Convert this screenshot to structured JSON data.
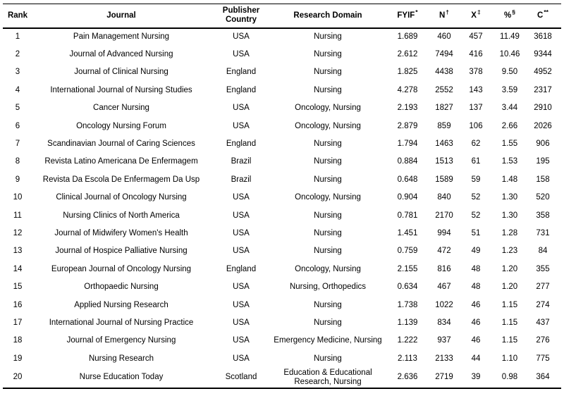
{
  "table": {
    "columns": [
      {
        "key": "rank",
        "label": "Rank",
        "mark": ""
      },
      {
        "key": "journal",
        "label": "Journal",
        "mark": ""
      },
      {
        "key": "country",
        "label": "Publisher Country",
        "mark": ""
      },
      {
        "key": "domain",
        "label": "Research Domain",
        "mark": ""
      },
      {
        "key": "fyif",
        "label": "FYIF",
        "mark": "*"
      },
      {
        "key": "n",
        "label": "N",
        "mark": "†"
      },
      {
        "key": "x",
        "label": "X",
        "mark": "‡"
      },
      {
        "key": "pct",
        "label": "%",
        "mark": "§"
      },
      {
        "key": "c",
        "label": "C",
        "mark": "**"
      }
    ],
    "rows": [
      {
        "rank": "1",
        "journal": "Pain Management Nursing",
        "country": "USA",
        "domain": "Nursing",
        "fyif": "1.689",
        "n": "460",
        "x": "457",
        "pct": "11.49",
        "c": "3618"
      },
      {
        "rank": "2",
        "journal": "Journal of Advanced Nursing",
        "country": "USA",
        "domain": "Nursing",
        "fyif": "2.612",
        "n": "7494",
        "x": "416",
        "pct": "10.46",
        "c": "9344"
      },
      {
        "rank": "3",
        "journal": "Journal of Clinical Nursing",
        "country": "England",
        "domain": "Nursing",
        "fyif": "1.825",
        "n": "4438",
        "x": "378",
        "pct": "9.50",
        "c": "4952"
      },
      {
        "rank": "4",
        "journal": "International Journal of Nursing Studies",
        "country": "England",
        "domain": "Nursing",
        "fyif": "4.278",
        "n": "2552",
        "x": "143",
        "pct": "3.59",
        "c": "2317"
      },
      {
        "rank": "5",
        "journal": "Cancer Nursing",
        "country": "USA",
        "domain": "Oncology, Nursing",
        "fyif": "2.193",
        "n": "1827",
        "x": "137",
        "pct": "3.44",
        "c": "2910"
      },
      {
        "rank": "6",
        "journal": "Oncology Nursing Forum",
        "country": "USA",
        "domain": "Oncology, Nursing",
        "fyif": "2.879",
        "n": "859",
        "x": "106",
        "pct": "2.66",
        "c": "2026"
      },
      {
        "rank": "7",
        "journal": "Scandinavian Journal of Caring Sciences",
        "country": "England",
        "domain": "Nursing",
        "fyif": "1.794",
        "n": "1463",
        "x": "62",
        "pct": "1.55",
        "c": "906"
      },
      {
        "rank": "8",
        "journal": "Revista Latino Americana De Enfermagem",
        "country": "Brazil",
        "domain": "Nursing",
        "fyif": "0.884",
        "n": "1513",
        "x": "61",
        "pct": "1.53",
        "c": "195"
      },
      {
        "rank": "9",
        "journal": "Revista Da Escola De Enfermagem Da Usp",
        "country": "Brazil",
        "domain": "Nursing",
        "fyif": "0.648",
        "n": "1589",
        "x": "59",
        "pct": "1.48",
        "c": "158"
      },
      {
        "rank": "10",
        "journal": "Clinical Journal of Oncology Nursing",
        "country": "USA",
        "domain": "Oncology, Nursing",
        "fyif": "0.904",
        "n": "840",
        "x": "52",
        "pct": "1.30",
        "c": "520"
      },
      {
        "rank": "11",
        "journal": "Nursing Clinics of North America",
        "country": "USA",
        "domain": "Nursing",
        "fyif": "0.781",
        "n": "2170",
        "x": "52",
        "pct": "1.30",
        "c": "358"
      },
      {
        "rank": "12",
        "journal": "Journal of Midwifery Women's Health",
        "country": "USA",
        "domain": "Nursing",
        "fyif": "1.451",
        "n": "994",
        "x": "51",
        "pct": "1.28",
        "c": "731"
      },
      {
        "rank": "13",
        "journal": "Journal of Hospice Palliative Nursing",
        "country": "USA",
        "domain": "Nursing",
        "fyif": "0.759",
        "n": "472",
        "x": "49",
        "pct": "1.23",
        "c": "84"
      },
      {
        "rank": "14",
        "journal": "European Journal of Oncology Nursing",
        "country": "England",
        "domain": "Oncology, Nursing",
        "fyif": "2.155",
        "n": "816",
        "x": "48",
        "pct": "1.20",
        "c": "355"
      },
      {
        "rank": "15",
        "journal": "Orthopaedic Nursing",
        "country": "USA",
        "domain": "Nursing, Orthopedics",
        "fyif": "0.634",
        "n": "467",
        "x": "48",
        "pct": "1.20",
        "c": "277"
      },
      {
        "rank": "16",
        "journal": "Applied Nursing Research",
        "country": "USA",
        "domain": "Nursing",
        "fyif": "1.738",
        "n": "1022",
        "x": "46",
        "pct": "1.15",
        "c": "274"
      },
      {
        "rank": "17",
        "journal": "International Journal of Nursing Practice",
        "country": "USA",
        "domain": "Nursing",
        "fyif": "1.139",
        "n": "834",
        "x": "46",
        "pct": "1.15",
        "c": "437"
      },
      {
        "rank": "18",
        "journal": "Journal of Emergency Nursing",
        "country": "USA",
        "domain": "Emergency Medicine, Nursing",
        "fyif": "1.222",
        "n": "937",
        "x": "46",
        "pct": "1.15",
        "c": "276"
      },
      {
        "rank": "19",
        "journal": "Nursing Research",
        "country": "USA",
        "domain": "Nursing",
        "fyif": "2.113",
        "n": "2133",
        "x": "44",
        "pct": "1.10",
        "c": "775"
      },
      {
        "rank": "20",
        "journal": "Nurse Education Today",
        "country": "Scotland",
        "domain": "Education & Educational Research, Nursing",
        "fyif": "2.636",
        "n": "2719",
        "x": "39",
        "pct": "0.98",
        "c": "364"
      }
    ]
  }
}
